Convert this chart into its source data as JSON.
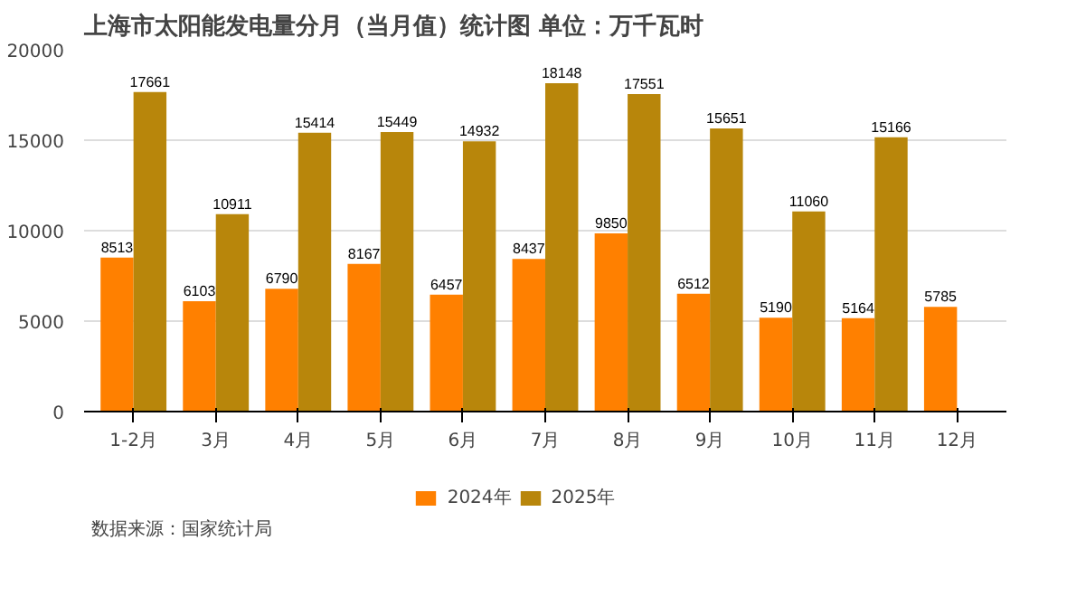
{
  "chart_data": {
    "type": "bar",
    "title": "上海市太阳能发电量分月（当月值）统计图  单位：万千瓦时",
    "categories": [
      "1-2月",
      "3月",
      "4月",
      "5月",
      "6月",
      "7月",
      "8月",
      "9月",
      "10月",
      "11月",
      "12月"
    ],
    "series": [
      {
        "name": "2024年",
        "color": "#ff8000",
        "values": [
          8513,
          6103,
          6790,
          8167,
          6457,
          8437,
          9850,
          6512,
          5190,
          5164,
          5785
        ]
      },
      {
        "name": "2025年",
        "color": "#b8860b",
        "values": [
          17661,
          10911,
          15414,
          15449,
          14932,
          18148,
          17551,
          15651,
          11060,
          15166,
          null
        ]
      }
    ],
    "ylim": [
      0,
      20000
    ],
    "yticks": [
      0,
      5000,
      10000,
      15000,
      20000
    ],
    "grid": "y",
    "legend": "bottom",
    "data_labels": true,
    "annotations": [
      "数据来源：国家统计局"
    ]
  }
}
